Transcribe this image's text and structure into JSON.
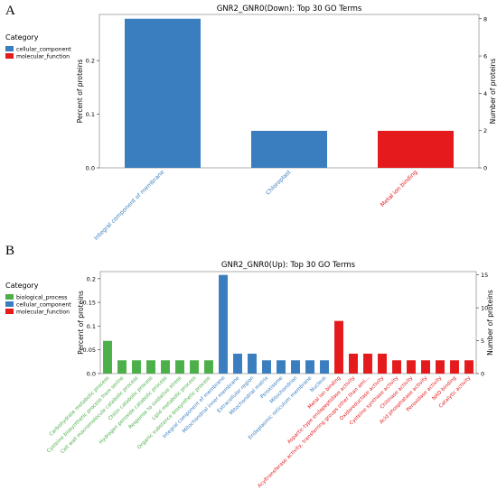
{
  "panel_labels": [
    "A",
    "B"
  ],
  "chart_data": [
    {
      "type": "bar",
      "title": "GNR2_GNR0(Down): Top 30 GO Terms",
      "ylabel": "Percent of proteins",
      "y2label": "Number of proteins",
      "ylim": [
        0,
        0.286
      ],
      "yticks": [
        0.0,
        0.1,
        0.2
      ],
      "y2ticks": [
        0,
        2,
        4,
        6,
        8
      ],
      "legend": {
        "title": "Category",
        "position": "left",
        "entries": [
          {
            "name": "cellular_component",
            "color": "#3a7ebf"
          },
          {
            "name": "molecular_function",
            "color": "#e41a1c"
          }
        ]
      },
      "categories": [
        "Integral component of membrane",
        "Chloroplast",
        "Metal ion binding"
      ],
      "category_groups": [
        "cellular_component",
        "cellular_component",
        "molecular_function"
      ],
      "values": [
        0.278,
        0.069,
        0.069
      ],
      "counts": [
        8,
        2,
        2
      ]
    },
    {
      "type": "bar",
      "title": "GNR2_GNR0(Up): Top 30 GO Terms",
      "ylabel": "Percent of proteins",
      "y2label": "Number of proteins",
      "ylim": [
        0,
        0.215
      ],
      "yticks": [
        0.0,
        0.05,
        0.1,
        0.15,
        0.2
      ],
      "y2ticks": [
        0,
        5,
        10,
        15
      ],
      "legend": {
        "title": "Category",
        "position": "left",
        "entries": [
          {
            "name": "biological_process",
            "color": "#4daf4a"
          },
          {
            "name": "cellular_component",
            "color": "#3a7ebf"
          },
          {
            "name": "molecular_function",
            "color": "#e41a1c"
          }
        ]
      },
      "categories": [
        "Carbohydrate metabolic process",
        "Cysteine biosynthetic process from serine",
        "Cell wall macromolecule catabolic process",
        "Chitin catabolic process",
        "Hydrogen peroxide catabolic process",
        "Response to oxidative stress",
        "Lipid metabolic process",
        "Organic substance biosynthetic process",
        "Integral component of membrane",
        "Mitochondrial inner membrane",
        "Extracellular region",
        "Mitochondrial matrix",
        "Peroxisome",
        "Mitochondrion",
        "Endoplasmic reticulum membrane",
        "Nucleus",
        "Metal ion binding",
        "Aspartic-type endopeptidase activity",
        "Acyltransferase activity, transferring groups other than ami...",
        "Oxidoreductase activity",
        "Cysteine synthase activity",
        "Chitinase activity",
        "Acid phosphatase activity",
        "Peroxidase activity",
        "NAD binding",
        "Catalytic activity"
      ],
      "category_groups": [
        "biological_process",
        "biological_process",
        "biological_process",
        "biological_process",
        "biological_process",
        "biological_process",
        "biological_process",
        "biological_process",
        "cellular_component",
        "cellular_component",
        "cellular_component",
        "cellular_component",
        "cellular_component",
        "cellular_component",
        "cellular_component",
        "cellular_component",
        "molecular_function",
        "molecular_function",
        "molecular_function",
        "molecular_function",
        "molecular_function",
        "molecular_function",
        "molecular_function",
        "molecular_function",
        "molecular_function",
        "molecular_function"
      ],
      "values": [
        0.069,
        0.028,
        0.028,
        0.028,
        0.028,
        0.028,
        0.028,
        0.028,
        0.208,
        0.042,
        0.042,
        0.028,
        0.028,
        0.028,
        0.028,
        0.028,
        0.111,
        0.042,
        0.042,
        0.042,
        0.028,
        0.028,
        0.028,
        0.028,
        0.028,
        0.028
      ],
      "counts": [
        5,
        2,
        2,
        2,
        2,
        2,
        2,
        2,
        15,
        3,
        3,
        2,
        2,
        2,
        2,
        2,
        8,
        3,
        3,
        3,
        2,
        2,
        2,
        2,
        2,
        2
      ]
    }
  ]
}
